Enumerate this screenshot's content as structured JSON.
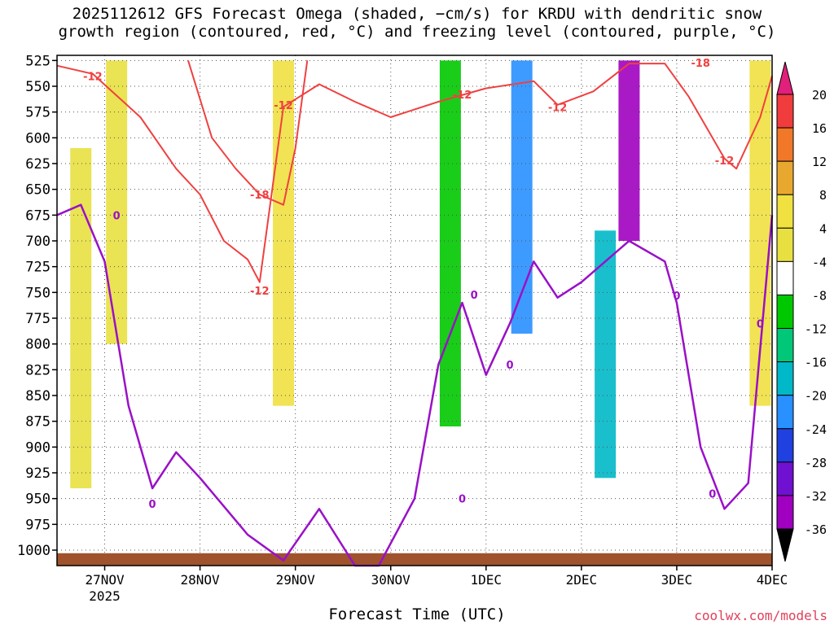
{
  "title_line1": "2025112612 GFS Forecast Omega (shaded, −cm/s) for KRDU with dendritic snow",
  "title_line2": "growth region (contoured, red, °C) and freezing level (contoured, purple, °C)",
  "credit": "coolwx.com/models",
  "colors": {
    "snow_contour": "#f04040",
    "freezing_contour": "#9a10c8",
    "terrain": "#a0522d",
    "grid": "#555555"
  },
  "chart_data": {
    "type": "heatmap",
    "title": "2025112612 GFS Forecast Omega (shaded, −cm/s) for KRDU with dendritic snow growth region (contoured, red, °C) and freezing level (contoured, purple, °C)",
    "xlabel": "Forecast Time (UTC)",
    "ylabel": "",
    "x_ticks": [
      "27NOV",
      "28NOV",
      "29NOV",
      "30NOV",
      "1DEC",
      "2DEC",
      "3DEC",
      "4DEC"
    ],
    "x_tick_sublabel": {
      "27NOV": "2025"
    },
    "x_range": [
      "2025-11-26T12Z",
      "2025-12-04T00Z"
    ],
    "y_ticks": [
      525,
      550,
      575,
      600,
      625,
      650,
      675,
      700,
      725,
      750,
      775,
      800,
      825,
      850,
      875,
      900,
      925,
      950,
      975,
      1000
    ],
    "y_units": "hPa",
    "y_range": [
      520,
      1015
    ],
    "y_inverted": true,
    "colorbar": {
      "levels": [
        20,
        16,
        12,
        8,
        4,
        -4,
        -8,
        -12,
        -16,
        -20,
        -24,
        -28,
        -32,
        -36
      ],
      "colors": [
        "#f03c3c",
        "#f07828",
        "#e8a830",
        "#f0e040",
        "#e8e040",
        "#ffffff",
        "#00c800",
        "#00c878",
        "#00b8c8",
        "#2890ff",
        "#2040e0",
        "#7010d0",
        "#a000c0",
        "#a0a0a0",
        "#000000"
      ],
      "top_arrow_color": "#e0207a",
      "bottom_arrow_color": "#000000"
    },
    "shaded_omega": [
      {
        "time": "2025-11-26T18Z",
        "p_top": 610,
        "p_bottom": 940,
        "value": 5
      },
      {
        "time": "2025-11-27T03Z",
        "p_top": 525,
        "p_bottom": 800,
        "value": 5
      },
      {
        "time": "2025-11-28T21Z",
        "p_top": 525,
        "p_bottom": 860,
        "value": 8
      },
      {
        "time": "2025-11-30T15Z",
        "p_top": 525,
        "p_bottom": 880,
        "value": -8
      },
      {
        "time": "2025-12-01T09Z",
        "p_top": 525,
        "p_bottom": 790,
        "value": -20
      },
      {
        "time": "2025-12-02T12Z",
        "p_top": 525,
        "p_bottom": 700,
        "value": -30
      },
      {
        "time": "2025-12-02T06Z",
        "p_top": 690,
        "p_bottom": 930,
        "value": -16
      },
      {
        "time": "2025-12-03T21Z",
        "p_top": 525,
        "p_bottom": 860,
        "value": 8
      }
    ],
    "series": [
      {
        "name": "-12",
        "color": "#f04040",
        "label_positions": [
          [
            "2025-11-26T21Z",
            540
          ],
          [
            "2025-11-28T15Z",
            748
          ],
          [
            "2025-11-28T21Z",
            568
          ],
          [
            "2025-11-30T18Z",
            558
          ],
          [
            "2025-12-01T18Z",
            570
          ],
          [
            "2025-12-03T12Z",
            622
          ]
        ],
        "x": [
          "2025-11-26T12Z",
          "2025-11-26T21Z",
          "2025-11-27T09Z",
          "2025-11-27T18Z",
          "2025-11-28T00Z",
          "2025-11-28T06Z",
          "2025-11-28T12Z",
          "2025-11-28T15Z",
          "2025-11-28T21Z",
          "2025-11-29T06Z",
          "2025-11-29T15Z",
          "2025-11-30T00Z",
          "2025-11-30T12Z",
          "2025-12-01T00Z",
          "2025-12-01T12Z",
          "2025-12-01T18Z",
          "2025-12-02T03Z",
          "2025-12-02T12Z",
          "2025-12-02T21Z",
          "2025-12-03T03Z",
          "2025-12-03T12Z",
          "2025-12-03T15Z",
          "2025-12-03T21Z",
          "2025-12-04T00Z"
        ],
        "y": [
          530,
          538,
          580,
          630,
          655,
          700,
          718,
          740,
          570,
          548,
          565,
          580,
          565,
          552,
          545,
          568,
          555,
          528,
          528,
          560,
          620,
          630,
          580,
          540
        ]
      },
      {
        "name": "-18",
        "color": "#f04040",
        "label_positions": [
          [
            "2025-11-28T15Z",
            655
          ],
          [
            "2025-12-03T06Z",
            527
          ]
        ],
        "x": [
          "2025-11-27T21Z",
          "2025-11-28T03Z",
          "2025-11-28T09Z",
          "2025-11-28T15Z",
          "2025-11-28T21Z",
          "2025-11-29T00Z",
          "2025-11-29T03Z"
        ],
        "y": [
          525,
          600,
          630,
          655,
          665,
          610,
          525
        ]
      },
      {
        "name": "0",
        "color": "#9a10c8",
        "label_positions": [
          [
            "2025-11-27T03Z",
            675
          ],
          [
            "2025-11-27T12Z",
            955
          ],
          [
            "2025-11-30T18Z",
            950
          ],
          [
            "2025-11-30T21Z",
            752
          ],
          [
            "2025-12-01T06Z",
            820
          ],
          [
            "2025-12-03T00Z",
            753
          ],
          [
            "2025-12-03T09Z",
            945
          ],
          [
            "2025-12-03T21Z",
            780
          ]
        ],
        "x": [
          "2025-11-26T12Z",
          "2025-11-26T18Z",
          "2025-11-27T00Z",
          "2025-11-27T06Z",
          "2025-11-27T12Z",
          "2025-11-27T18Z",
          "2025-11-28T00Z",
          "2025-11-28T12Z",
          "2025-11-28T21Z",
          "2025-11-29T06Z",
          "2025-11-29T15Z",
          "2025-11-29T21Z",
          "2025-11-30T06Z",
          "2025-11-30T12Z",
          "2025-11-30T18Z",
          "2025-12-01T00Z",
          "2025-12-01T06Z",
          "2025-12-01T12Z",
          "2025-12-01T18Z",
          "2025-12-02T00Z",
          "2025-12-02T12Z",
          "2025-12-02T21Z",
          "2025-12-03T00Z",
          "2025-12-03T06Z",
          "2025-12-03T12Z",
          "2025-12-03T18Z",
          "2025-12-04T00Z"
        ],
        "y": [
          675,
          665,
          720,
          860,
          940,
          905,
          930,
          985,
          1010,
          960,
          1015,
          1015,
          950,
          820,
          760,
          830,
          780,
          720,
          755,
          740,
          700,
          720,
          760,
          900,
          960,
          935,
          675
        ]
      }
    ]
  }
}
